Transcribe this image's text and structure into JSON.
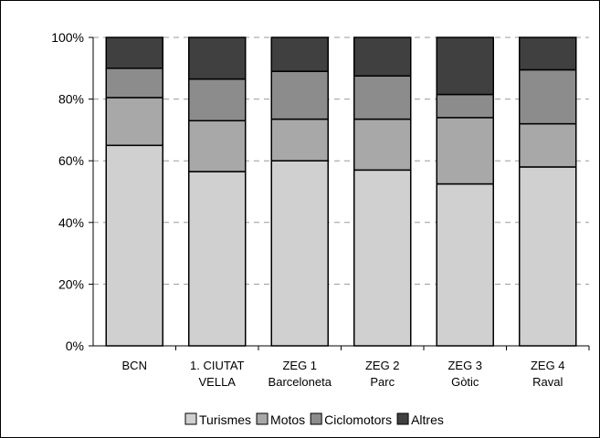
{
  "chart_data": {
    "type": "bar",
    "stacked": true,
    "normalized": true,
    "categories": [
      [
        "BCN"
      ],
      [
        "1. CIUTAT",
        "VELLA"
      ],
      [
        "ZEG 1",
        "Barceloneta"
      ],
      [
        "ZEG 2",
        "Parc"
      ],
      [
        "ZEG 3",
        "Gòtic"
      ],
      [
        "ZEG 4",
        "Raval"
      ]
    ],
    "series": [
      {
        "name": "Turismes",
        "color": "#d0d0d0",
        "values": [
          65,
          56.5,
          60,
          57,
          52.5,
          58
        ]
      },
      {
        "name": "Motos",
        "color": "#a8a8a8",
        "values": [
          15.5,
          16.5,
          13.5,
          16.5,
          21.5,
          14
        ]
      },
      {
        "name": "Ciclomotors",
        "color": "#8c8c8c",
        "values": [
          9.5,
          13.5,
          15.5,
          14,
          7.5,
          17.5
        ]
      },
      {
        "name": "Altres",
        "color": "#404040",
        "values": [
          10,
          13.5,
          11,
          12.5,
          18.5,
          10.5
        ]
      }
    ],
    "ylim": [
      0,
      100
    ],
    "yticks": [
      "0%",
      "20%",
      "40%",
      "60%",
      "80%",
      "100%"
    ],
    "grid": true,
    "legend_position": "bottom",
    "title": "",
    "xlabel": "",
    "ylabel": ""
  }
}
